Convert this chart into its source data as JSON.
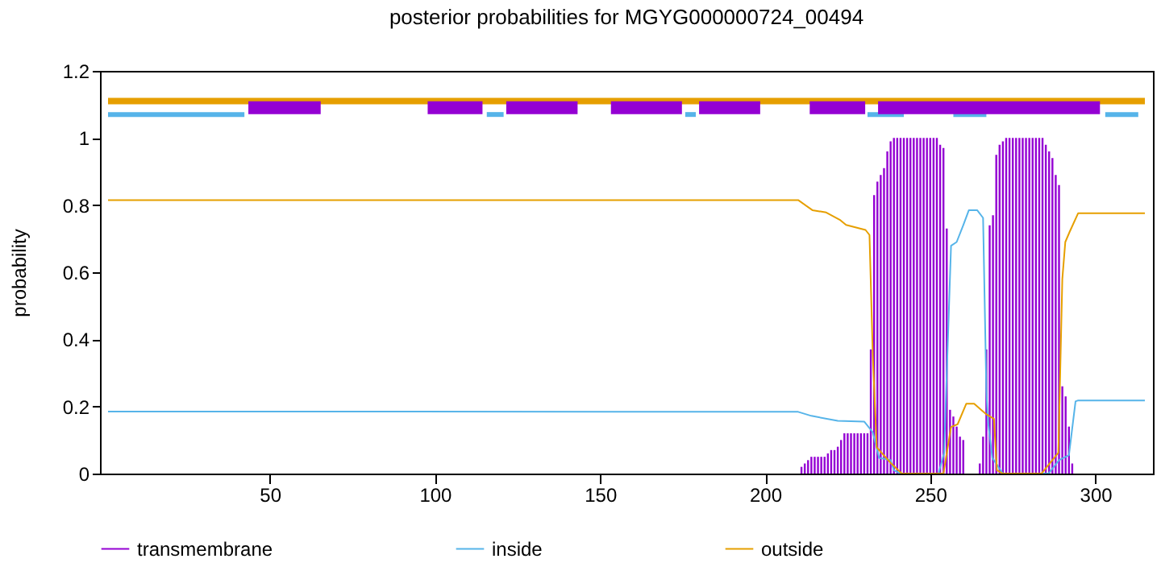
{
  "chart_data": {
    "type": "line",
    "title": "posterior probabilities for MGYG000000724_00494",
    "ylabel": "probability",
    "xlim": [
      1,
      315
    ],
    "ylim": [
      0,
      1.2
    ],
    "xticks": [
      50,
      100,
      150,
      200,
      250,
      300
    ],
    "yticks": [
      0,
      0.2,
      0.4,
      0.6,
      0.8,
      1,
      1.2
    ],
    "grid": false,
    "legend": "bottom",
    "series": [
      {
        "name": "transmembrane",
        "type": "bar",
        "color": "#9400d3",
        "x": [
          211,
          212,
          213,
          214,
          215,
          216,
          217,
          218,
          219,
          220,
          221,
          222,
          223,
          224,
          225,
          226,
          227,
          228,
          229,
          230,
          231,
          232,
          233,
          234,
          235,
          236,
          237,
          238,
          239,
          240,
          241,
          242,
          243,
          244,
          245,
          246,
          247,
          248,
          249,
          250,
          251,
          252,
          253,
          254,
          255,
          256,
          257,
          258,
          259,
          260,
          265,
          266,
          267,
          268,
          269,
          270,
          271,
          272,
          273,
          274,
          275,
          276,
          277,
          278,
          279,
          280,
          281,
          282,
          283,
          284,
          285,
          286,
          287,
          288,
          289,
          290,
          291,
          292,
          293
        ],
        "values": [
          0.02,
          0.03,
          0.04,
          0.05,
          0.05,
          0.05,
          0.05,
          0.05,
          0.06,
          0.07,
          0.07,
          0.08,
          0.1,
          0.12,
          0.12,
          0.12,
          0.12,
          0.12,
          0.12,
          0.12,
          0.12,
          0.37,
          0.83,
          0.87,
          0.89,
          0.91,
          0.96,
          0.99,
          1,
          1,
          1,
          1,
          1,
          1,
          1,
          1,
          1,
          1,
          1,
          1,
          1,
          1,
          0.98,
          0.97,
          0.73,
          0.19,
          0.17,
          0.14,
          0.11,
          0.1,
          0.03,
          0.11,
          0.37,
          0.74,
          0.77,
          0.95,
          0.98,
          0.99,
          1,
          1,
          1,
          1,
          1,
          1,
          1,
          1,
          1,
          1,
          1,
          1,
          0.98,
          0.96,
          0.94,
          0.89,
          0.86,
          0.26,
          0.23,
          0.14,
          0.03
        ]
      },
      {
        "name": "inside",
        "type": "line",
        "color": "#56b4e9",
        "x": [
          1,
          210,
          214,
          222,
          230,
          232.6,
          234.5,
          238,
          239,
          241,
          252.5,
          254.2,
          256.3,
          258,
          260,
          261.7,
          264.2,
          266,
          267,
          267.5,
          268.8,
          272,
          285.8,
          289,
          292,
          294,
          294.8,
          315
        ],
        "values": [
          0.185,
          0.184,
          0.172,
          0.157,
          0.155,
          0.123,
          0.047,
          0.04,
          0.01,
          0,
          0,
          0.062,
          0.679,
          0.69,
          0.74,
          0.785,
          0.785,
          0.762,
          0.245,
          0.155,
          0.047,
          0,
          0,
          0.04,
          0.055,
          0.215,
          0.218,
          0.218
        ]
      },
      {
        "name": "outside",
        "type": "line",
        "color": "#e69f00",
        "x": [
          1,
          210,
          214.3,
          218.5,
          222.8,
          224.5,
          230.4,
          231.6,
          232.6,
          233.8,
          238,
          241.4,
          254,
          256.3,
          258.3,
          260.9,
          263.3,
          266.8,
          269.3,
          270.2,
          272,
          283.7,
          288.8,
          290,
          290.9,
          292.2,
          294.8,
          315
        ],
        "values": [
          0.815,
          0.815,
          0.785,
          0.778,
          0.755,
          0.741,
          0.726,
          0.711,
          0.352,
          0.078,
          0.032,
          0,
          0,
          0.139,
          0.147,
          0.208,
          0.208,
          0.178,
          0.163,
          0.01,
          0,
          0,
          0.062,
          0.58,
          0.69,
          0.72,
          0.776,
          0.776
        ]
      },
      {
        "type": "line",
        "color": "#e69f00",
        "x": [
          1,
          315
        ],
        "values": [
          1.11,
          1.11
        ]
      },
      {
        "type": "line",
        "color": "#56b4e9",
        "x": [
          1,
          42.3,
          42.4,
          115.7,
          120.8,
          120.9,
          175.8,
          179,
          179.1,
          231,
          242,
          242.1,
          257,
          267,
          267.1,
          303,
          313
        ],
        "values": [
          1.07,
          1.07,
          null,
          1.07,
          1.07,
          null,
          1.07,
          1.07,
          null,
          1.07,
          1.07,
          null,
          1.07,
          1.07,
          null,
          1.07,
          1.07
        ]
      },
      {
        "type": "line",
        "color": "#9400d3",
        "x": [
          43.5,
          65.4,
          65.5,
          97.8,
          114.4,
          114.5,
          121.6,
          143.2,
          143.3,
          153.3,
          174.8,
          174.9,
          180,
          198.5,
          198.6,
          213.5,
          230.3,
          230.4,
          234.2,
          301.4
        ],
        "values": [
          1.09,
          1.09,
          null,
          1.09,
          1.09,
          null,
          1.09,
          1.09,
          null,
          1.09,
          1.09,
          null,
          1.09,
          1.09,
          null,
          1.09,
          1.09,
          null,
          1.09,
          1.09
        ]
      }
    ]
  }
}
